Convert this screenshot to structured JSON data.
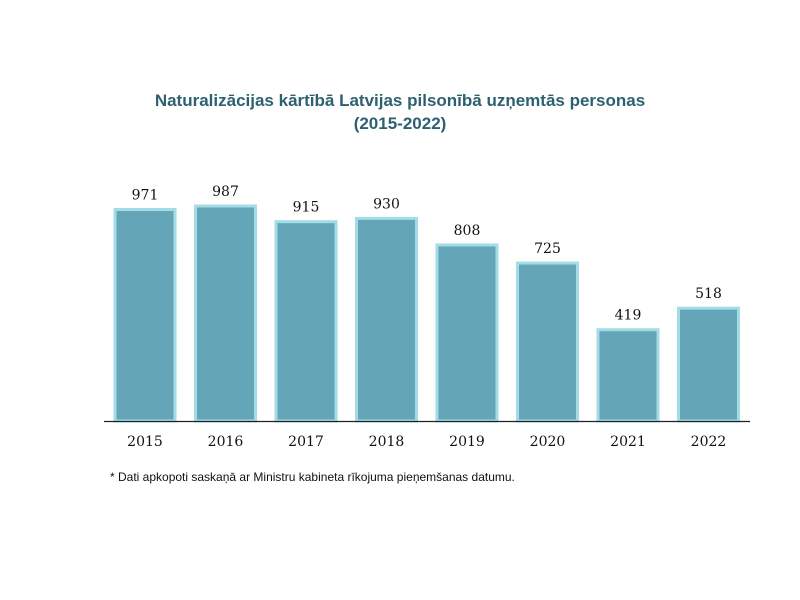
{
  "chart_data": {
    "type": "bar",
    "title": "Naturalizācijas kārtībā Latvijas pilsonībā uzņemtās personas",
    "subtitle": "(2015-2022)",
    "categories": [
      "2015",
      "2016",
      "2017",
      "2018",
      "2019",
      "2020",
      "2021",
      "2022"
    ],
    "values": [
      971,
      987,
      915,
      930,
      808,
      725,
      419,
      518
    ],
    "xlabel": "",
    "ylabel": "",
    "ylim": [
      0,
      1000
    ],
    "grid": false,
    "legend": "none",
    "bar_color": "#64a6b8",
    "bar_border_color": "#a3dbe6"
  },
  "footnote": "* Dati apkopoti saskaņā ar Ministru kabineta rīkojuma  pieņemšanas datumu."
}
